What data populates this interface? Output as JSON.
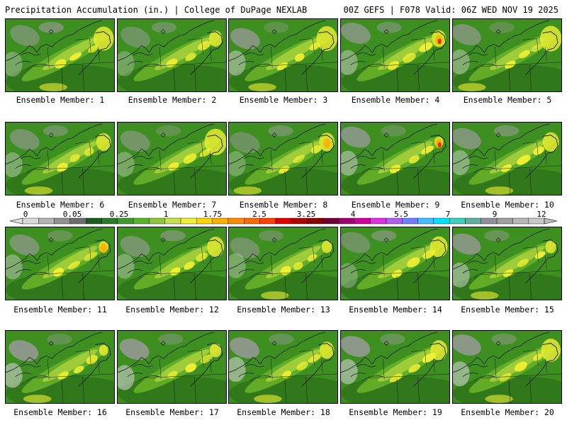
{
  "header": {
    "left": "Precipitation Accumulation (in.) | College of DuPage NEXLAB",
    "right": "00Z GEFS | F078 Valid: 06Z WED NOV 19 2025"
  },
  "members": [
    {
      "label": "Ensemble Member: 1"
    },
    {
      "label": "Ensemble Member: 2"
    },
    {
      "label": "Ensemble Member: 3"
    },
    {
      "label": "Ensemble Member: 4"
    },
    {
      "label": "Ensemble Member: 5"
    },
    {
      "label": "Ensemble Member: 6"
    },
    {
      "label": "Ensemble Member: 7"
    },
    {
      "label": "Ensemble Member: 8"
    },
    {
      "label": "Ensemble Member: 9"
    },
    {
      "label": "Ensemble Member: 10"
    },
    {
      "label": "Ensemble Member: 11"
    },
    {
      "label": "Ensemble Member: 12"
    },
    {
      "label": "Ensemble Member: 13"
    },
    {
      "label": "Ensemble Member: 14"
    },
    {
      "label": "Ensemble Member: 15"
    },
    {
      "label": "Ensemble Member: 16"
    },
    {
      "label": "Ensemble Member: 17"
    },
    {
      "label": "Ensemble Member: 18"
    },
    {
      "label": "Ensemble Member: 19"
    },
    {
      "label": "Ensemble Member: 20"
    }
  ],
  "colorbar": {
    "tick_labels": [
      "0",
      "0.05",
      "0.25",
      "1",
      "1.75",
      "2.5",
      "3.25",
      "4",
      "5.5",
      "7",
      "9",
      "12"
    ],
    "colors": [
      "#d8d8d8",
      "#b4b4b4",
      "#909090",
      "#6e6e6e",
      "#1c5c1c",
      "#2a7a2a",
      "#3e9a2e",
      "#5ab42a",
      "#8cc83a",
      "#c8e04a",
      "#f0f032",
      "#ffd700",
      "#ffb000",
      "#ff8c00",
      "#ff6a00",
      "#ff4000",
      "#e00000",
      "#b00000",
      "#8c0000",
      "#700030",
      "#a00070",
      "#d000a0",
      "#e030e0",
      "#b060f0",
      "#7080ff",
      "#40c0ff",
      "#00e0ff",
      "#40d0c0",
      "#60b0a0",
      "#9090a0",
      "#a0a0a0",
      "#b8b8b8",
      "#c8c8c8"
    ]
  },
  "map": {
    "colors": {
      "base": "#3d8f1f",
      "dark": "#2b6e17",
      "light": "#6ab42a",
      "yellowgreen": "#a9d23c",
      "yellow": "#f0f032",
      "gray": "#9a9a9a",
      "lightgray": "#cfcfcf",
      "orange": "#ffb000",
      "red": "#e02000",
      "lines": "#1a1a1a"
    }
  }
}
